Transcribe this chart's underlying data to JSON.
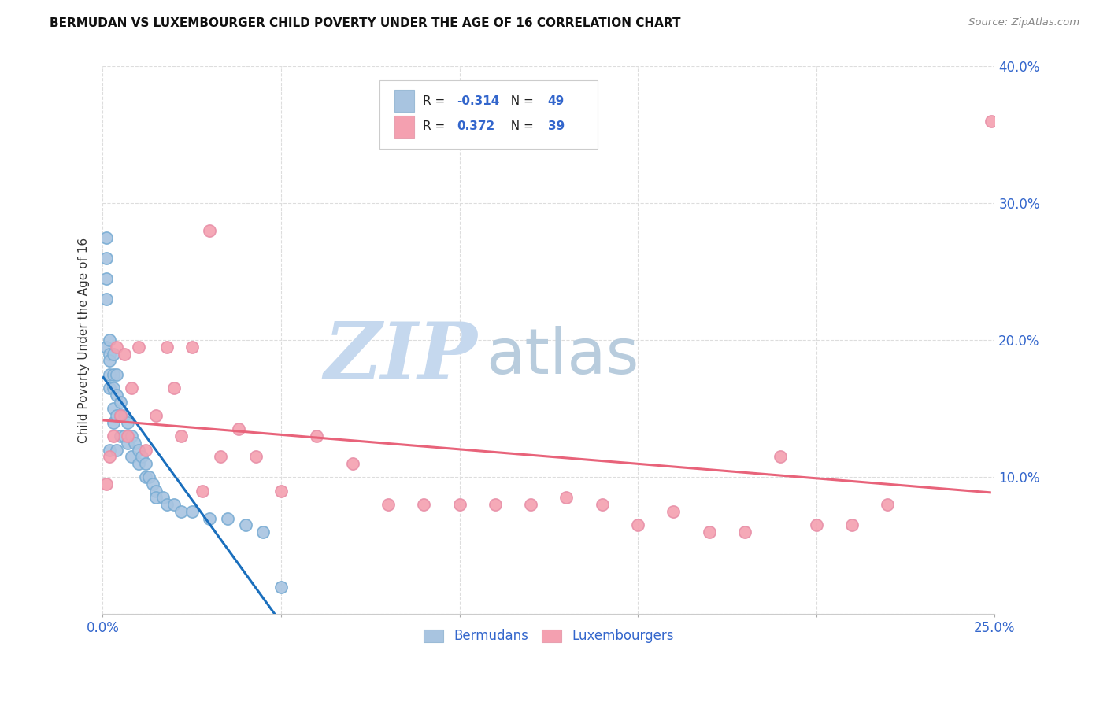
{
  "title": "BERMUDAN VS LUXEMBOURGER CHILD POVERTY UNDER THE AGE OF 16 CORRELATION CHART",
  "source": "Source: ZipAtlas.com",
  "ylabel": "Child Poverty Under the Age of 16",
  "x_min": 0.0,
  "x_max": 0.25,
  "y_min": 0.0,
  "y_max": 0.4,
  "bermudan_color": "#a8c4e0",
  "luxembourger_color": "#f4a0b0",
  "bermudan_line_color": "#1a6fbd",
  "luxembourger_line_color": "#e8637a",
  "trend_extension_color": "#bbbbbb",
  "R_bermudan": -0.314,
  "N_bermudan": 49,
  "R_luxembourger": 0.372,
  "N_luxembourger": 39,
  "bermudan_x": [
    0.001,
    0.001,
    0.001,
    0.001,
    0.001,
    0.002,
    0.002,
    0.002,
    0.002,
    0.002,
    0.002,
    0.003,
    0.003,
    0.003,
    0.003,
    0.003,
    0.004,
    0.004,
    0.004,
    0.004,
    0.005,
    0.005,
    0.005,
    0.006,
    0.006,
    0.007,
    0.007,
    0.008,
    0.008,
    0.009,
    0.01,
    0.01,
    0.011,
    0.012,
    0.012,
    0.013,
    0.014,
    0.015,
    0.015,
    0.017,
    0.018,
    0.02,
    0.022,
    0.025,
    0.03,
    0.035,
    0.04,
    0.045,
    0.05
  ],
  "bermudan_y": [
    0.275,
    0.26,
    0.245,
    0.23,
    0.195,
    0.2,
    0.19,
    0.185,
    0.175,
    0.165,
    0.12,
    0.19,
    0.175,
    0.165,
    0.15,
    0.14,
    0.175,
    0.16,
    0.145,
    0.12,
    0.155,
    0.145,
    0.13,
    0.145,
    0.13,
    0.14,
    0.125,
    0.13,
    0.115,
    0.125,
    0.12,
    0.11,
    0.115,
    0.11,
    0.1,
    0.1,
    0.095,
    0.09,
    0.085,
    0.085,
    0.08,
    0.08,
    0.075,
    0.075,
    0.07,
    0.07,
    0.065,
    0.06,
    0.02
  ],
  "luxembourger_x": [
    0.001,
    0.002,
    0.003,
    0.004,
    0.005,
    0.006,
    0.007,
    0.008,
    0.01,
    0.012,
    0.015,
    0.018,
    0.02,
    0.022,
    0.025,
    0.028,
    0.03,
    0.033,
    0.038,
    0.043,
    0.05,
    0.06,
    0.07,
    0.08,
    0.09,
    0.1,
    0.11,
    0.12,
    0.13,
    0.14,
    0.15,
    0.16,
    0.17,
    0.18,
    0.19,
    0.2,
    0.21,
    0.22,
    0.249
  ],
  "luxembourger_y": [
    0.095,
    0.115,
    0.13,
    0.195,
    0.145,
    0.19,
    0.13,
    0.165,
    0.195,
    0.12,
    0.145,
    0.195,
    0.165,
    0.13,
    0.195,
    0.09,
    0.28,
    0.115,
    0.135,
    0.115,
    0.09,
    0.13,
    0.11,
    0.08,
    0.08,
    0.08,
    0.08,
    0.08,
    0.085,
    0.08,
    0.065,
    0.075,
    0.06,
    0.06,
    0.115,
    0.065,
    0.065,
    0.08,
    0.36
  ],
  "watermark_zip": "ZIP",
  "watermark_atlas": "atlas",
  "watermark_color_zip": "#c5d8ee",
  "watermark_color_atlas": "#b8ccdd",
  "legend_text_color": "#3366cc",
  "legend_black_color": "#222222"
}
